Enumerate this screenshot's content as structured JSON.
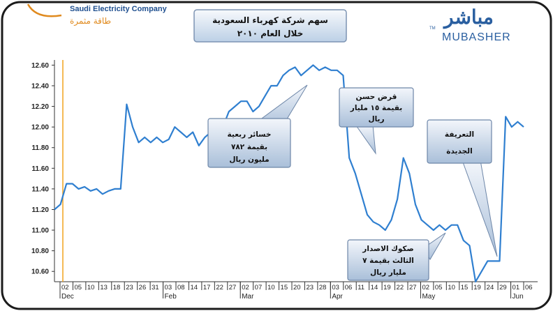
{
  "header": {
    "company_name": "Saudi Electricity Company",
    "company_tagline": "طاقة مثمرة",
    "logo_arabic": "مباشر",
    "logo_english": "MUBASHER",
    "logo_tm": "TM"
  },
  "chart_data": {
    "type": "line",
    "title_lines": [
      "سهم شركة كهرباء السعودية",
      "خلال العام ٢٠١٠"
    ],
    "ylim": [
      10.5,
      12.65
    ],
    "yticks": [
      10.6,
      10.8,
      11.0,
      11.2,
      11.4,
      11.6,
      11.8,
      12.0,
      12.2,
      12.4,
      12.6
    ],
    "ytick_labels": [
      "10.60",
      "10.80",
      "11.00",
      "11.20",
      "11.40",
      "11.60",
      "11.80",
      "12.00",
      "12.20",
      "12.40",
      "12.60"
    ],
    "xtick_labels": [
      "02",
      "05",
      "10",
      "13",
      "18",
      "23",
      "26",
      "31",
      "03",
      "08",
      "14",
      "17",
      "22",
      "27",
      "02",
      "07",
      "10",
      "15",
      "20",
      "23",
      "28",
      "03",
      "06",
      "11",
      "14",
      "19",
      "22",
      "27",
      "02",
      "05",
      "10",
      "15",
      "19",
      "24",
      "29",
      "01",
      "06"
    ],
    "months": [
      {
        "label": "Dec",
        "tick_index": 0
      },
      {
        "label": "Feb",
        "tick_index": 8
      },
      {
        "label": "Mar",
        "tick_index": 14
      },
      {
        "label": "Apr",
        "tick_index": 21
      },
      {
        "label": "May",
        "tick_index": 28
      },
      {
        "label": "Jun",
        "tick_index": 35
      }
    ],
    "series": [
      {
        "color": "#2f7fd0",
        "values": [
          11.2,
          11.25,
          11.45,
          11.45,
          11.4,
          11.42,
          11.38,
          11.4,
          11.35,
          11.38,
          11.4,
          11.4,
          12.22,
          12.0,
          11.85,
          11.9,
          11.85,
          11.9,
          11.85,
          11.88,
          12.0,
          11.95,
          11.9,
          11.95,
          11.82,
          11.9,
          11.95,
          11.95,
          12.0,
          12.15,
          12.2,
          12.25,
          12.25,
          12.15,
          12.2,
          12.3,
          12.4,
          12.4,
          12.5,
          12.55,
          12.58,
          12.5,
          12.55,
          12.6,
          12.55,
          12.58,
          12.55,
          12.55,
          12.5,
          11.7,
          11.55,
          11.35,
          11.15,
          11.08,
          11.05,
          11.0,
          11.1,
          11.3,
          11.7,
          11.55,
          11.25,
          11.1,
          11.05,
          11.0,
          11.05,
          11.0,
          11.05,
          11.05,
          10.9,
          10.85,
          10.5,
          10.6,
          10.7,
          10.7,
          10.7,
          12.1,
          12.0,
          12.05,
          12.0
        ]
      }
    ],
    "vertical_marker": {
      "color": "#f2a31e",
      "at_tick_index": 0
    },
    "annotations": [
      {
        "text_lines": [
          "خسائر ربعية",
          "بقيمة ٧٨٢",
          "مليون ريال"
        ]
      },
      {
        "text_lines": [
          "قرض حسن",
          "بقيمة ١٥ مليار",
          "ريال"
        ]
      },
      {
        "text_lines": [
          "التعريفة",
          "الجديدة"
        ]
      },
      {
        "text_lines": [
          "صكوك الاصدار",
          "الثالث بقيمة ٧",
          "مليار ريال"
        ]
      }
    ]
  }
}
